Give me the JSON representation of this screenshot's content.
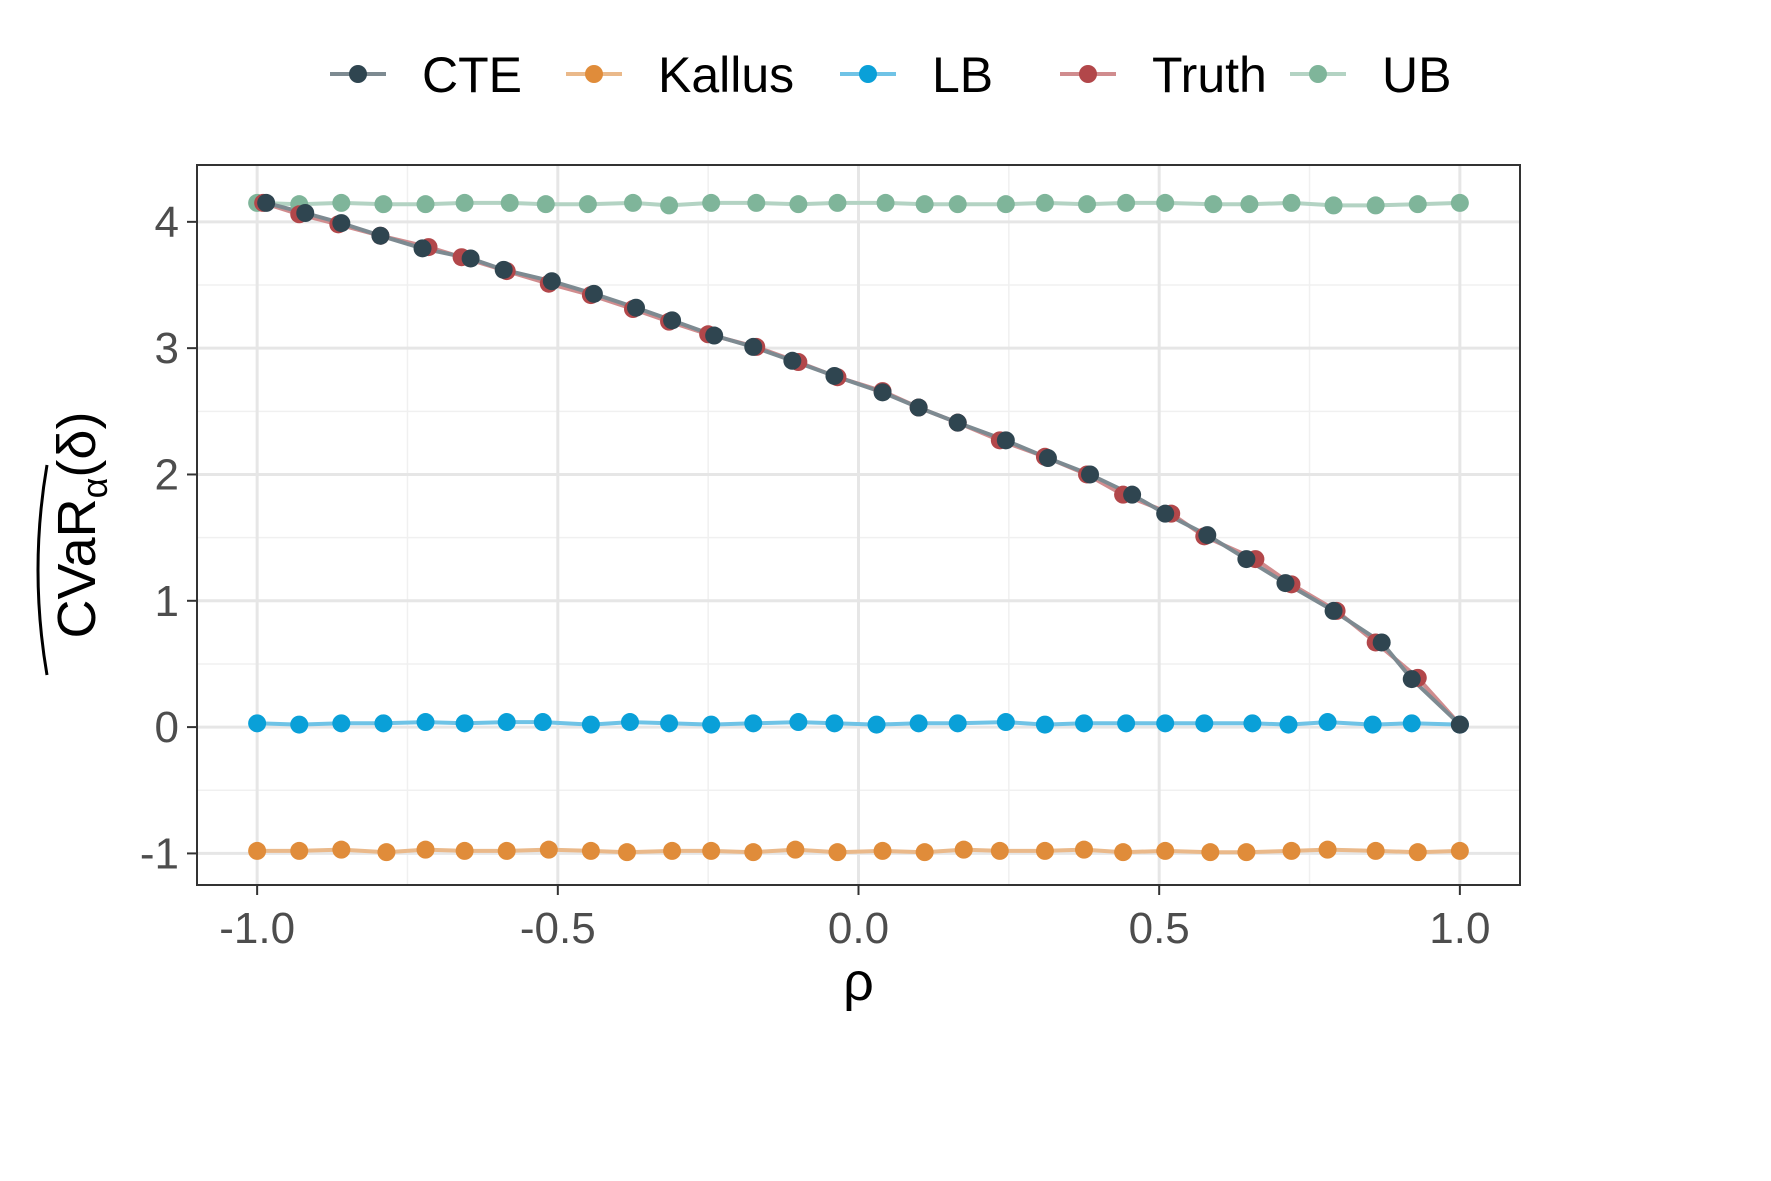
{
  "chart_data": {
    "type": "line",
    "title": "",
    "xlabel": "ρ",
    "ylabel": "CVaRα(δ)",
    "ylabel_parts": {
      "main": "CVaR",
      "subscript": "α",
      "suffix": "(δ)"
    },
    "xlim": [
      -1.1,
      1.1
    ],
    "ylim": [
      -1.25,
      4.45
    ],
    "x_ticks": [
      -1.0,
      -0.5,
      0.0,
      0.5,
      1.0
    ],
    "x_tick_labels": [
      "-1.0",
      "-0.5",
      "0.0",
      "0.5",
      "1.0"
    ],
    "y_ticks": [
      -1,
      0,
      1,
      2,
      3,
      4
    ],
    "y_tick_labels": [
      "-1",
      "0",
      "1",
      "2",
      "3",
      "4"
    ],
    "grid": true,
    "legend_position": "top",
    "series": [
      {
        "name": "UB",
        "color": "#7fb59a",
        "x": [
          -1.0,
          -0.93,
          -0.86,
          -0.79,
          -0.72,
          -0.655,
          -0.58,
          -0.52,
          -0.45,
          -0.375,
          -0.315,
          -0.245,
          -0.17,
          -0.1,
          -0.035,
          0.045,
          0.11,
          0.165,
          0.245,
          0.31,
          0.38,
          0.445,
          0.51,
          0.59,
          0.65,
          0.72,
          0.79,
          0.86,
          0.93,
          1.0
        ],
        "y": [
          4.15,
          4.14,
          4.15,
          4.14,
          4.14,
          4.15,
          4.15,
          4.14,
          4.14,
          4.15,
          4.13,
          4.15,
          4.15,
          4.14,
          4.15,
          4.15,
          4.14,
          4.14,
          4.14,
          4.15,
          4.14,
          4.15,
          4.15,
          4.14,
          4.14,
          4.15,
          4.13,
          4.13,
          4.14,
          4.15
        ]
      },
      {
        "name": "Truth",
        "color": "#b2474a",
        "x": [
          -0.99,
          -0.93,
          -0.865,
          -0.795,
          -0.715,
          -0.66,
          -0.585,
          -0.515,
          -0.445,
          -0.375,
          -0.315,
          -0.25,
          -0.17,
          -0.1,
          -0.035,
          0.04,
          0.1,
          0.165,
          0.235,
          0.31,
          0.38,
          0.44,
          0.52,
          0.575,
          0.66,
          0.72,
          0.795,
          0.86,
          0.93,
          1.0
        ],
        "y": [
          4.15,
          4.06,
          3.98,
          3.89,
          3.8,
          3.72,
          3.61,
          3.51,
          3.42,
          3.31,
          3.21,
          3.11,
          3.01,
          2.89,
          2.77,
          2.66,
          2.53,
          2.41,
          2.27,
          2.14,
          2.0,
          1.84,
          1.69,
          1.51,
          1.33,
          1.13,
          0.92,
          0.67,
          0.39,
          0.02
        ]
      },
      {
        "name": "LB",
        "color": "#0aa0d8",
        "x": [
          -1.0,
          -0.93,
          -0.86,
          -0.79,
          -0.72,
          -0.655,
          -0.585,
          -0.525,
          -0.445,
          -0.38,
          -0.315,
          -0.245,
          -0.175,
          -0.1,
          -0.04,
          0.03,
          0.1,
          0.165,
          0.245,
          0.31,
          0.375,
          0.445,
          0.51,
          0.575,
          0.655,
          0.715,
          0.78,
          0.855,
          0.92,
          1.0
        ],
        "y": [
          0.03,
          0.02,
          0.03,
          0.03,
          0.04,
          0.03,
          0.04,
          0.04,
          0.02,
          0.04,
          0.03,
          0.02,
          0.03,
          0.04,
          0.03,
          0.02,
          0.03,
          0.03,
          0.04,
          0.02,
          0.03,
          0.03,
          0.03,
          0.03,
          0.03,
          0.02,
          0.04,
          0.02,
          0.03,
          0.02
        ]
      },
      {
        "name": "Kallus",
        "color": "#e08c3a",
        "x": [
          -1.0,
          -0.93,
          -0.86,
          -0.785,
          -0.72,
          -0.655,
          -0.585,
          -0.515,
          -0.445,
          -0.385,
          -0.31,
          -0.245,
          -0.175,
          -0.105,
          -0.035,
          0.04,
          0.11,
          0.175,
          0.235,
          0.31,
          0.375,
          0.44,
          0.51,
          0.585,
          0.645,
          0.72,
          0.78,
          0.86,
          0.93,
          1.0
        ],
        "y": [
          -0.98,
          -0.98,
          -0.97,
          -0.99,
          -0.97,
          -0.98,
          -0.98,
          -0.97,
          -0.98,
          -0.99,
          -0.98,
          -0.98,
          -0.99,
          -0.97,
          -0.99,
          -0.98,
          -0.99,
          -0.97,
          -0.98,
          -0.98,
          -0.97,
          -0.99,
          -0.98,
          -0.99,
          -0.99,
          -0.98,
          -0.97,
          -0.98,
          -0.99,
          -0.98
        ]
      },
      {
        "name": "CTE",
        "color": "#2f4550",
        "x": [
          -0.985,
          -0.92,
          -0.86,
          -0.795,
          -0.725,
          -0.645,
          -0.59,
          -0.51,
          -0.44,
          -0.37,
          -0.31,
          -0.24,
          -0.175,
          -0.11,
          -0.04,
          0.04,
          0.1,
          0.165,
          0.245,
          0.315,
          0.385,
          0.455,
          0.51,
          0.58,
          0.645,
          0.71,
          0.79,
          0.87,
          0.92,
          1.0
        ],
        "y": [
          4.15,
          4.07,
          3.99,
          3.89,
          3.79,
          3.71,
          3.62,
          3.53,
          3.43,
          3.32,
          3.22,
          3.1,
          3.01,
          2.9,
          2.78,
          2.65,
          2.53,
          2.41,
          2.27,
          2.13,
          2.0,
          1.84,
          1.69,
          1.52,
          1.33,
          1.14,
          0.92,
          0.67,
          0.38,
          0.02
        ]
      }
    ],
    "legend": [
      {
        "name": "CTE",
        "color": "#2f4550",
        "line_color": "#7d8a91"
      },
      {
        "name": "Kallus",
        "color": "#e08c3a",
        "line_color": "#eab98a"
      },
      {
        "name": "LB",
        "color": "#0aa0d8",
        "line_color": "#6fc3e6"
      },
      {
        "name": "Truth",
        "color": "#b2474a",
        "line_color": "#d08c8e"
      },
      {
        "name": "UB",
        "color": "#7fb59a",
        "line_color": "#b3d3c3"
      }
    ]
  }
}
